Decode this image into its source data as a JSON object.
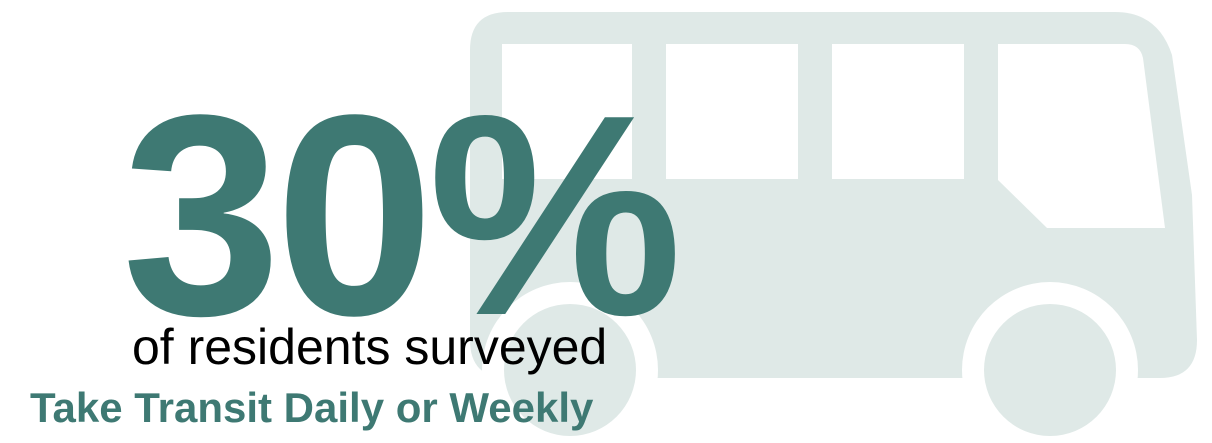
{
  "stat": {
    "value": "30%",
    "subtitle": "of residents surveyed",
    "tagline": "Take Transit Daily or Weekly"
  },
  "icon": {
    "name": "bus-icon"
  },
  "colors": {
    "accent": "#3e7973",
    "bus_fill": "#dfe9e7",
    "text_dark": "#000000",
    "background": "#ffffff"
  }
}
